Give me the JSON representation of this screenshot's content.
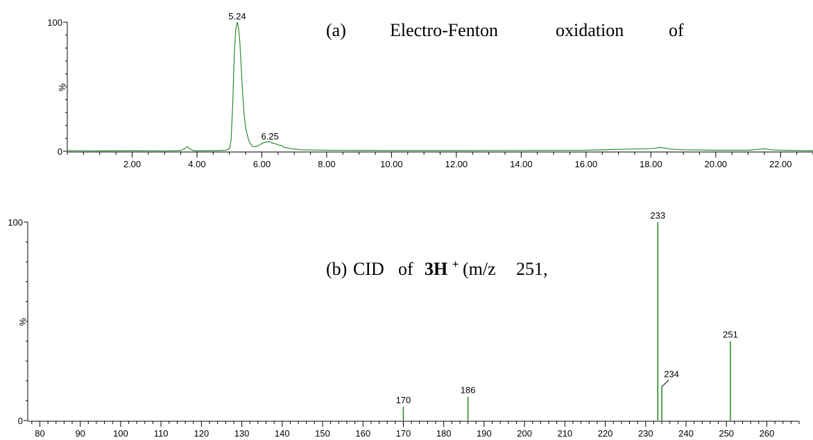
{
  "chart_data": [
    {
      "type": "line",
      "panel_label": "(a)",
      "title_words": [
        "Electro-Fenton",
        "oxidation",
        "of"
      ],
      "xlabel": "",
      "ylabel": "%",
      "xlim": [
        0.0,
        23.0
      ],
      "ylim": [
        0,
        100
      ],
      "xticks": [
        "2.00",
        "4.00",
        "6.00",
        "8.00",
        "10.00",
        "12.00",
        "14.00",
        "16.00",
        "18.00",
        "20.00",
        "22.00"
      ],
      "xtick_values": [
        2,
        4,
        6,
        8,
        10,
        12,
        14,
        16,
        18,
        20,
        22
      ],
      "yticks": [
        "0",
        "100"
      ],
      "ytick_values": [
        0,
        100
      ],
      "peak_labels": [
        {
          "x": 5.24,
          "y": 100,
          "text": "5.24"
        },
        {
          "x": 6.25,
          "y": 7,
          "text": "6.25"
        }
      ],
      "series": [
        {
          "color": "#2e8b2e",
          "x": [
            0.0,
            1.0,
            2.0,
            3.0,
            3.5,
            3.6,
            3.7,
            3.8,
            3.9,
            4.5,
            4.9,
            5.0,
            5.05,
            5.1,
            5.15,
            5.2,
            5.24,
            5.28,
            5.32,
            5.36,
            5.4,
            5.45,
            5.5,
            5.6,
            5.7,
            5.8,
            5.9,
            6.0,
            6.1,
            6.2,
            6.25,
            6.3,
            6.4,
            6.5,
            6.6,
            6.7,
            6.9,
            7.2,
            8.0,
            10.0,
            12.0,
            14.0,
            16.0,
            17.0,
            17.5,
            18.0,
            18.3,
            18.6,
            19.0,
            20.0,
            21.0,
            21.5,
            21.7,
            22.0,
            23.0
          ],
          "y": [
            0.5,
            0.3,
            0.5,
            0.4,
            0.6,
            1.8,
            3.5,
            1.6,
            0.5,
            0.5,
            0.8,
            2.0,
            8.0,
            35.0,
            75.0,
            95.0,
            100.0,
            96.0,
            85.0,
            68.0,
            48.0,
            30.0,
            18.0,
            8.0,
            4.0,
            3.5,
            4.5,
            6.0,
            7.0,
            7.5,
            7.5,
            6.5,
            6.0,
            5.0,
            4.5,
            3.0,
            2.0,
            1.2,
            0.8,
            0.6,
            0.6,
            0.7,
            0.8,
            1.5,
            1.8,
            2.0,
            3.0,
            1.8,
            1.2,
            0.8,
            0.8,
            2.0,
            1.2,
            0.8,
            0.5
          ]
        }
      ]
    },
    {
      "type": "bar",
      "panel_label": "(b)",
      "title_parts": [
        "CID",
        "of",
        "3H",
        "+",
        "(m/z",
        "251,"
      ],
      "xlabel": "",
      "ylabel": "%",
      "xlim": [
        77,
        268
      ],
      "ylim": [
        0,
        100
      ],
      "xticks": [
        "80",
        "90",
        "100",
        "110",
        "120",
        "130",
        "140",
        "150",
        "160",
        "170",
        "180",
        "190",
        "200",
        "210",
        "220",
        "230",
        "240",
        "250",
        "260"
      ],
      "xtick_values": [
        80,
        90,
        100,
        110,
        120,
        130,
        140,
        150,
        160,
        170,
        180,
        190,
        200,
        210,
        220,
        230,
        240,
        250,
        260
      ],
      "yticks": [
        "0",
        "100"
      ],
      "ytick_values": [
        0,
        100
      ],
      "series": [
        {
          "color": "#2e8b2e",
          "x": [
            170,
            186,
            233,
            234,
            251
          ],
          "values": [
            7,
            12,
            100,
            17,
            40
          ]
        }
      ],
      "peak_labels": [
        {
          "x": 170,
          "y": 7,
          "text": "170"
        },
        {
          "x": 186,
          "y": 12,
          "text": "186"
        },
        {
          "x": 233,
          "y": 100,
          "text": "233"
        },
        {
          "x": 234,
          "y": 17,
          "text": "234"
        },
        {
          "x": 251,
          "y": 40,
          "text": "251"
        }
      ]
    }
  ]
}
